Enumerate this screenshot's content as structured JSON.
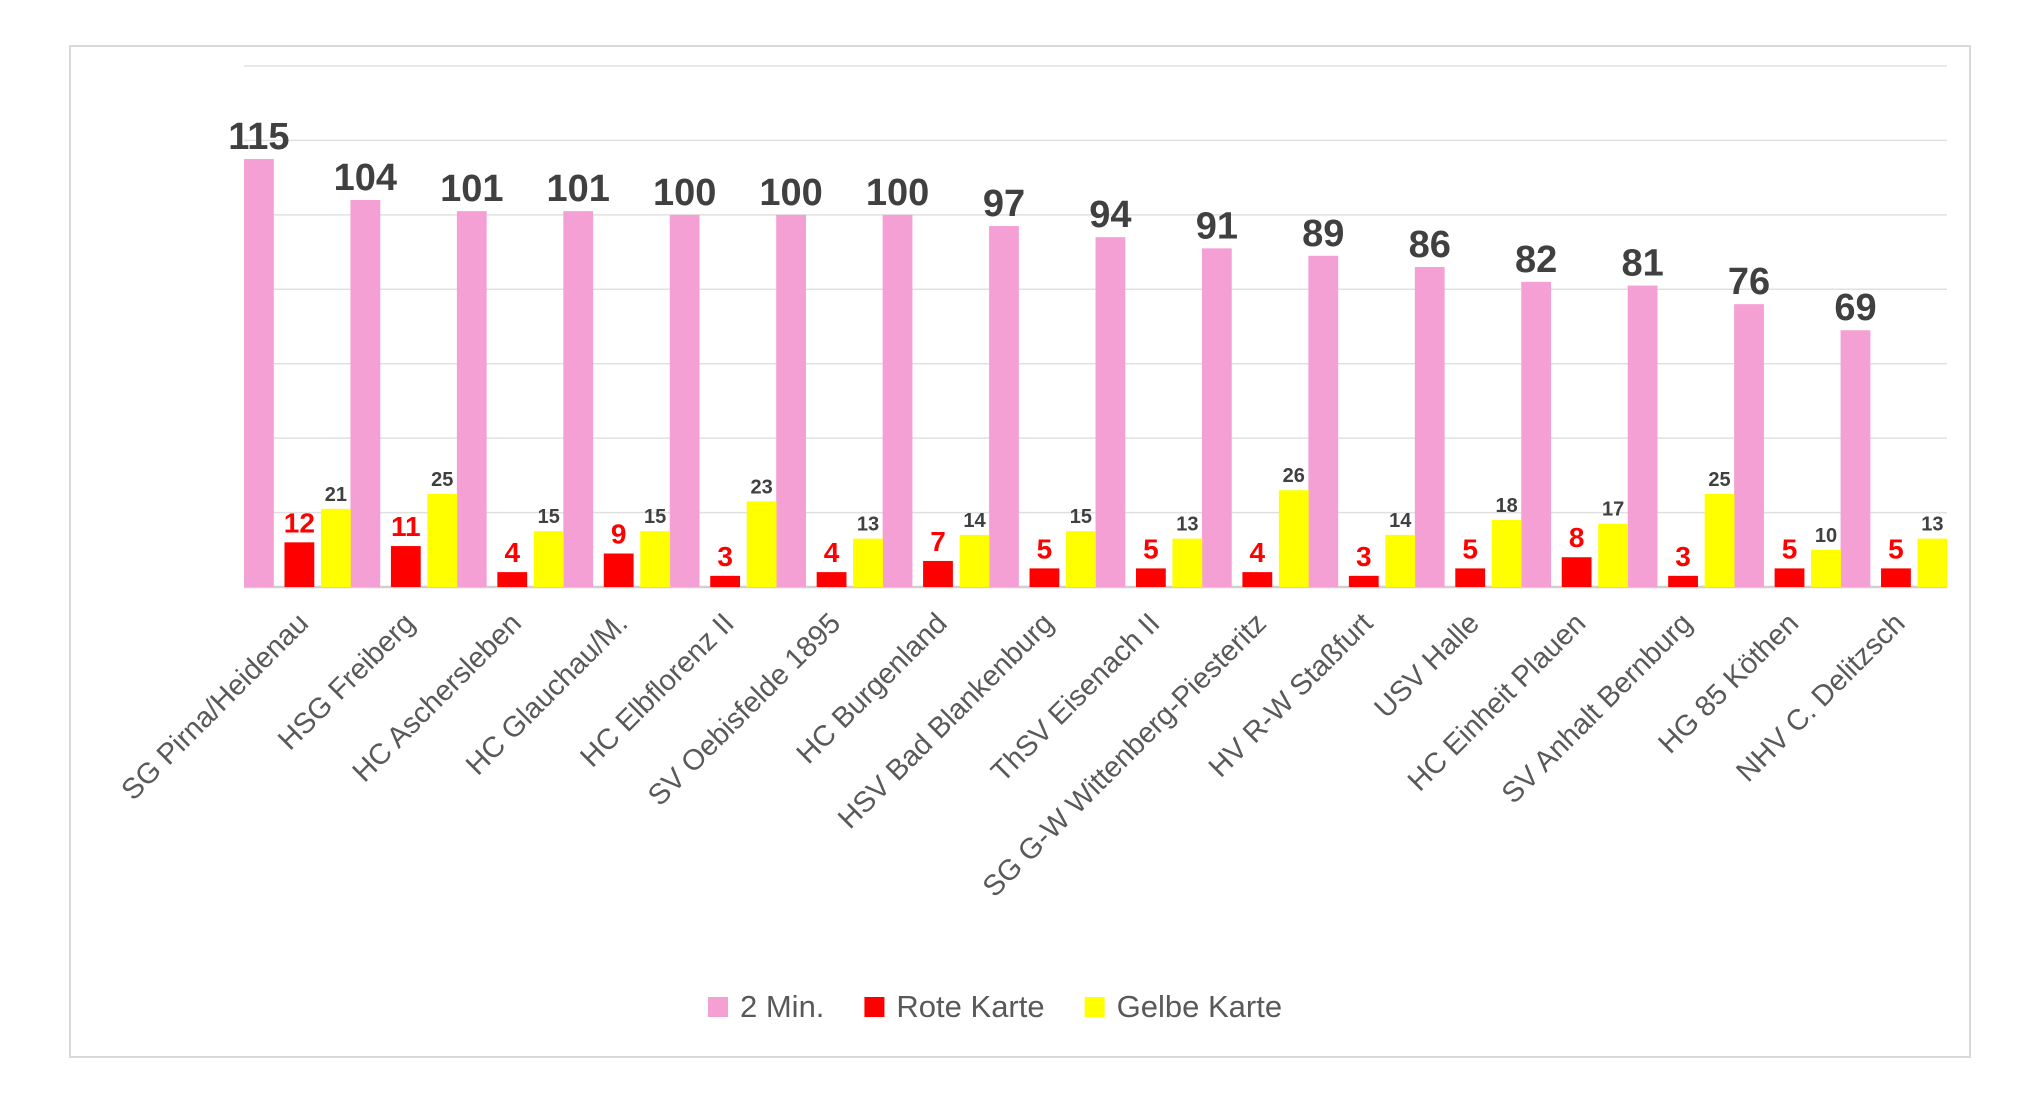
{
  "chart_data": {
    "type": "bar",
    "categories": [
      "SG Pirna/Heidenau",
      "HSG Freiberg",
      "HC Aschersleben",
      "HC Glauchau/M.",
      "HC Elbflorenz II",
      "SV Oebisfelde 1895",
      "HC Burgenland",
      "HSV Bad Blankenburg",
      "ThSV Eisenach II",
      "SG G-W Wittenberg-Piesteritz",
      "HV R-W Staßfurt",
      "USV Halle",
      "HC Einheit Plauen",
      "SV Anhalt Bernburg",
      "HG 85 Köthen",
      "NHV C. Delitzsch"
    ],
    "series": [
      {
        "name": "2 Min.",
        "color": "#f5a0d4",
        "values": [
          115,
          104,
          101,
          101,
          100,
          100,
          100,
          97,
          94,
          91,
          89,
          86,
          82,
          81,
          76,
          69
        ]
      },
      {
        "name": "Rote Karte",
        "color": "#ff0000",
        "values": [
          12,
          11,
          4,
          9,
          3,
          4,
          7,
          5,
          5,
          4,
          3,
          5,
          8,
          3,
          5,
          5
        ]
      },
      {
        "name": "Gelbe Karte",
        "color": "#ffff00",
        "values": [
          21,
          25,
          15,
          15,
          23,
          13,
          14,
          15,
          13,
          26,
          14,
          18,
          17,
          25,
          10,
          13
        ]
      }
    ],
    "ylim": [
      0,
      140
    ],
    "grid": true,
    "legend": "bottom",
    "data_labels": true
  }
}
